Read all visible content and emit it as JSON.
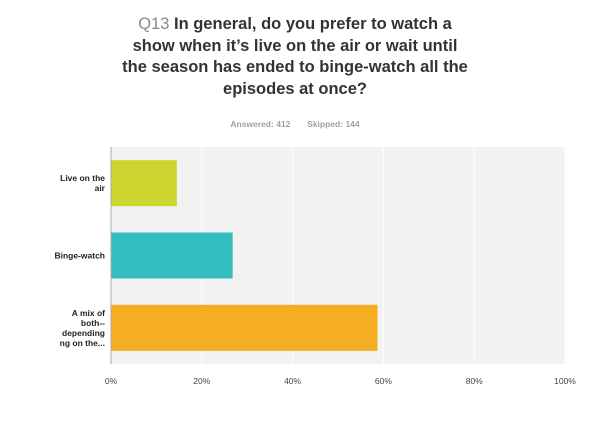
{
  "question": {
    "number": "Q13",
    "title_lines": [
      "In general, do you prefer to watch a",
      "show when it’s live on the air or wait until",
      "the season has ended to binge-watch all the",
      "episodes at once?"
    ]
  },
  "stats": {
    "answered_label": "Answered:",
    "answered_value": "412",
    "skipped_label": "Skipped:",
    "skipped_value": "144"
  },
  "colors": {
    "plot_background": "#f2f2f2",
    "gridline": "#ffffff",
    "axis_line": "#aaaaaa",
    "tick_text": "#444444",
    "category_text": "#222222"
  },
  "chart_data": {
    "type": "bar",
    "orientation": "horizontal",
    "categories": [
      [
        "Live on the",
        "air"
      ],
      [
        "Binge-watch"
      ],
      [
        "A mix of",
        "both--",
        "depending",
        "ng on the..."
      ]
    ],
    "values": [
      14.5,
      26.8,
      58.7
    ],
    "bar_colors": [
      "#ccd62f",
      "#33bfbf",
      "#f5ae22"
    ],
    "xlim": [
      0,
      100
    ],
    "xticks": [
      0,
      20,
      40,
      60,
      80,
      100
    ],
    "tick_labels": [
      "0%",
      "20%",
      "40%",
      "60%",
      "80%",
      "100%"
    ],
    "grid": true,
    "legend": "none"
  }
}
